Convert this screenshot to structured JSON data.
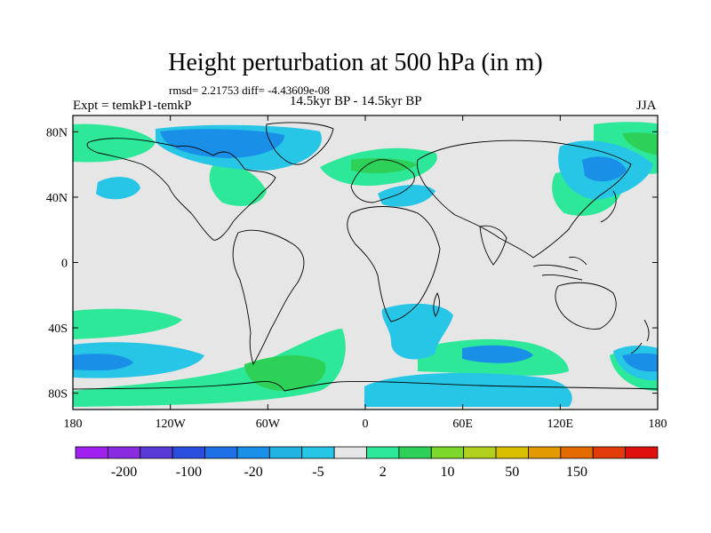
{
  "title": "Height perturbation at 500 hPa (in m)",
  "stats": "rmsd= 2.21753 diff= -4.43609e-08",
  "experiment": "Expt = temkP1-temkP",
  "period": "14.5kyr BP - 14.5kyr BP",
  "season": "JJA",
  "axes": {
    "x_ticks": [
      "180",
      "120W",
      "60W",
      "0",
      "60E",
      "120E",
      "180"
    ],
    "y_ticks": [
      "80N",
      "40N",
      "0",
      "40S",
      "80S"
    ]
  },
  "colorbar": {
    "labels": [
      "-200",
      "-100",
      "-20",
      "-5",
      "2",
      "10",
      "50",
      "150"
    ],
    "colors": [
      "#a020f0",
      "#8a2be2",
      "#5a3ad6",
      "#2a4fe0",
      "#1e6fe6",
      "#1a90e8",
      "#21b4e2",
      "#26c6e6",
      "#e6e6e6",
      "#2ee89a",
      "#2ed158",
      "#7cd82a",
      "#b2d01e",
      "#d8c000",
      "#e39a00",
      "#e56b00",
      "#e23c0a",
      "#e01010"
    ]
  },
  "palette": {
    "land_fill": "#e6e6e6",
    "positive_small": "#26e39a",
    "positive_mid": "#2ed158",
    "negative_small": "#27c6e6",
    "negative_mid": "#1a8fe8"
  }
}
